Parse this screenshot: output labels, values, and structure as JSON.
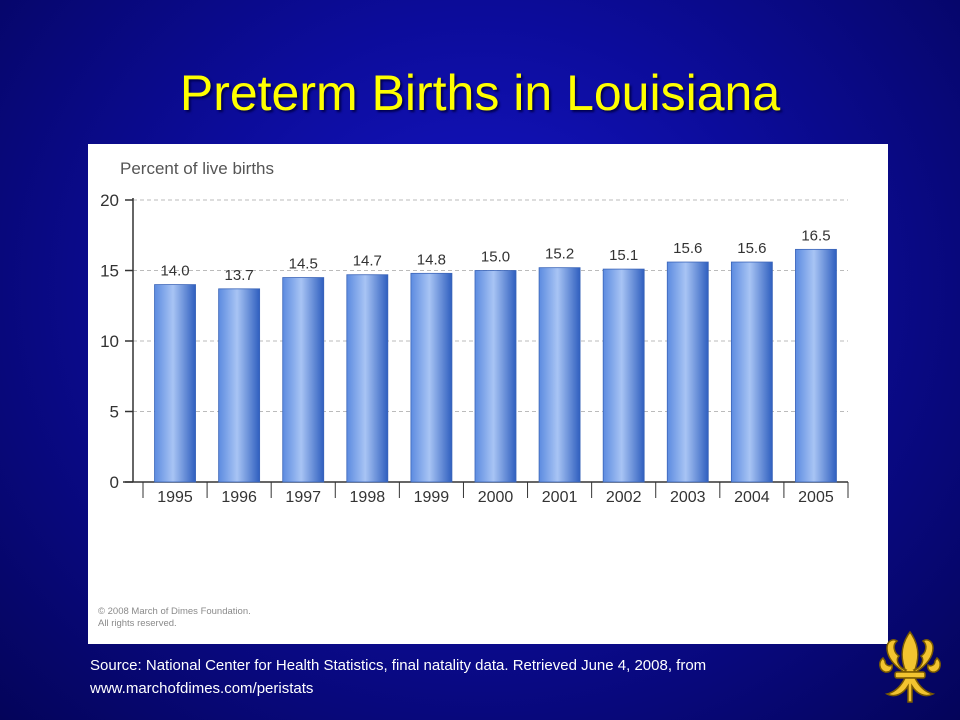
{
  "slide": {
    "title": "Preterm Births in Louisiana",
    "copyright_line1": "© 2008 March of Dimes Foundation.",
    "copyright_line2": "All rights reserved.",
    "source_line1": "Source: National Center for Health Statistics, final natality data. Retrieved June 4, 2008, from",
    "source_line2": "www.marchofdimes.com/peristats",
    "logo_icon": "fleur-de-lis-icon"
  },
  "colors": {
    "background": "#0c0c9a",
    "title": "#ffff00",
    "bar_light": "#a8c4f4",
    "bar_mid": "#5c8be0",
    "bar_dark": "#2f5fbf",
    "logo_gold": "#f3c430"
  },
  "chart_data": {
    "type": "bar",
    "title": "Percent of live births",
    "xlabel": "",
    "ylabel": "",
    "categories": [
      "1995",
      "1996",
      "1997",
      "1998",
      "1999",
      "2000",
      "2001",
      "2002",
      "2003",
      "2004",
      "2005"
    ],
    "values": [
      14.0,
      13.7,
      14.5,
      14.7,
      14.8,
      15.0,
      15.2,
      15.1,
      15.6,
      15.6,
      16.5
    ],
    "value_labels": [
      "14.0",
      "13.7",
      "14.5",
      "14.7",
      "14.8",
      "15.0",
      "15.2",
      "15.1",
      "15.6",
      "15.6",
      "16.5"
    ],
    "ylim": [
      0,
      20
    ],
    "yticks": [
      0,
      5,
      10,
      15,
      20
    ],
    "grid": true,
    "legend": "none"
  }
}
